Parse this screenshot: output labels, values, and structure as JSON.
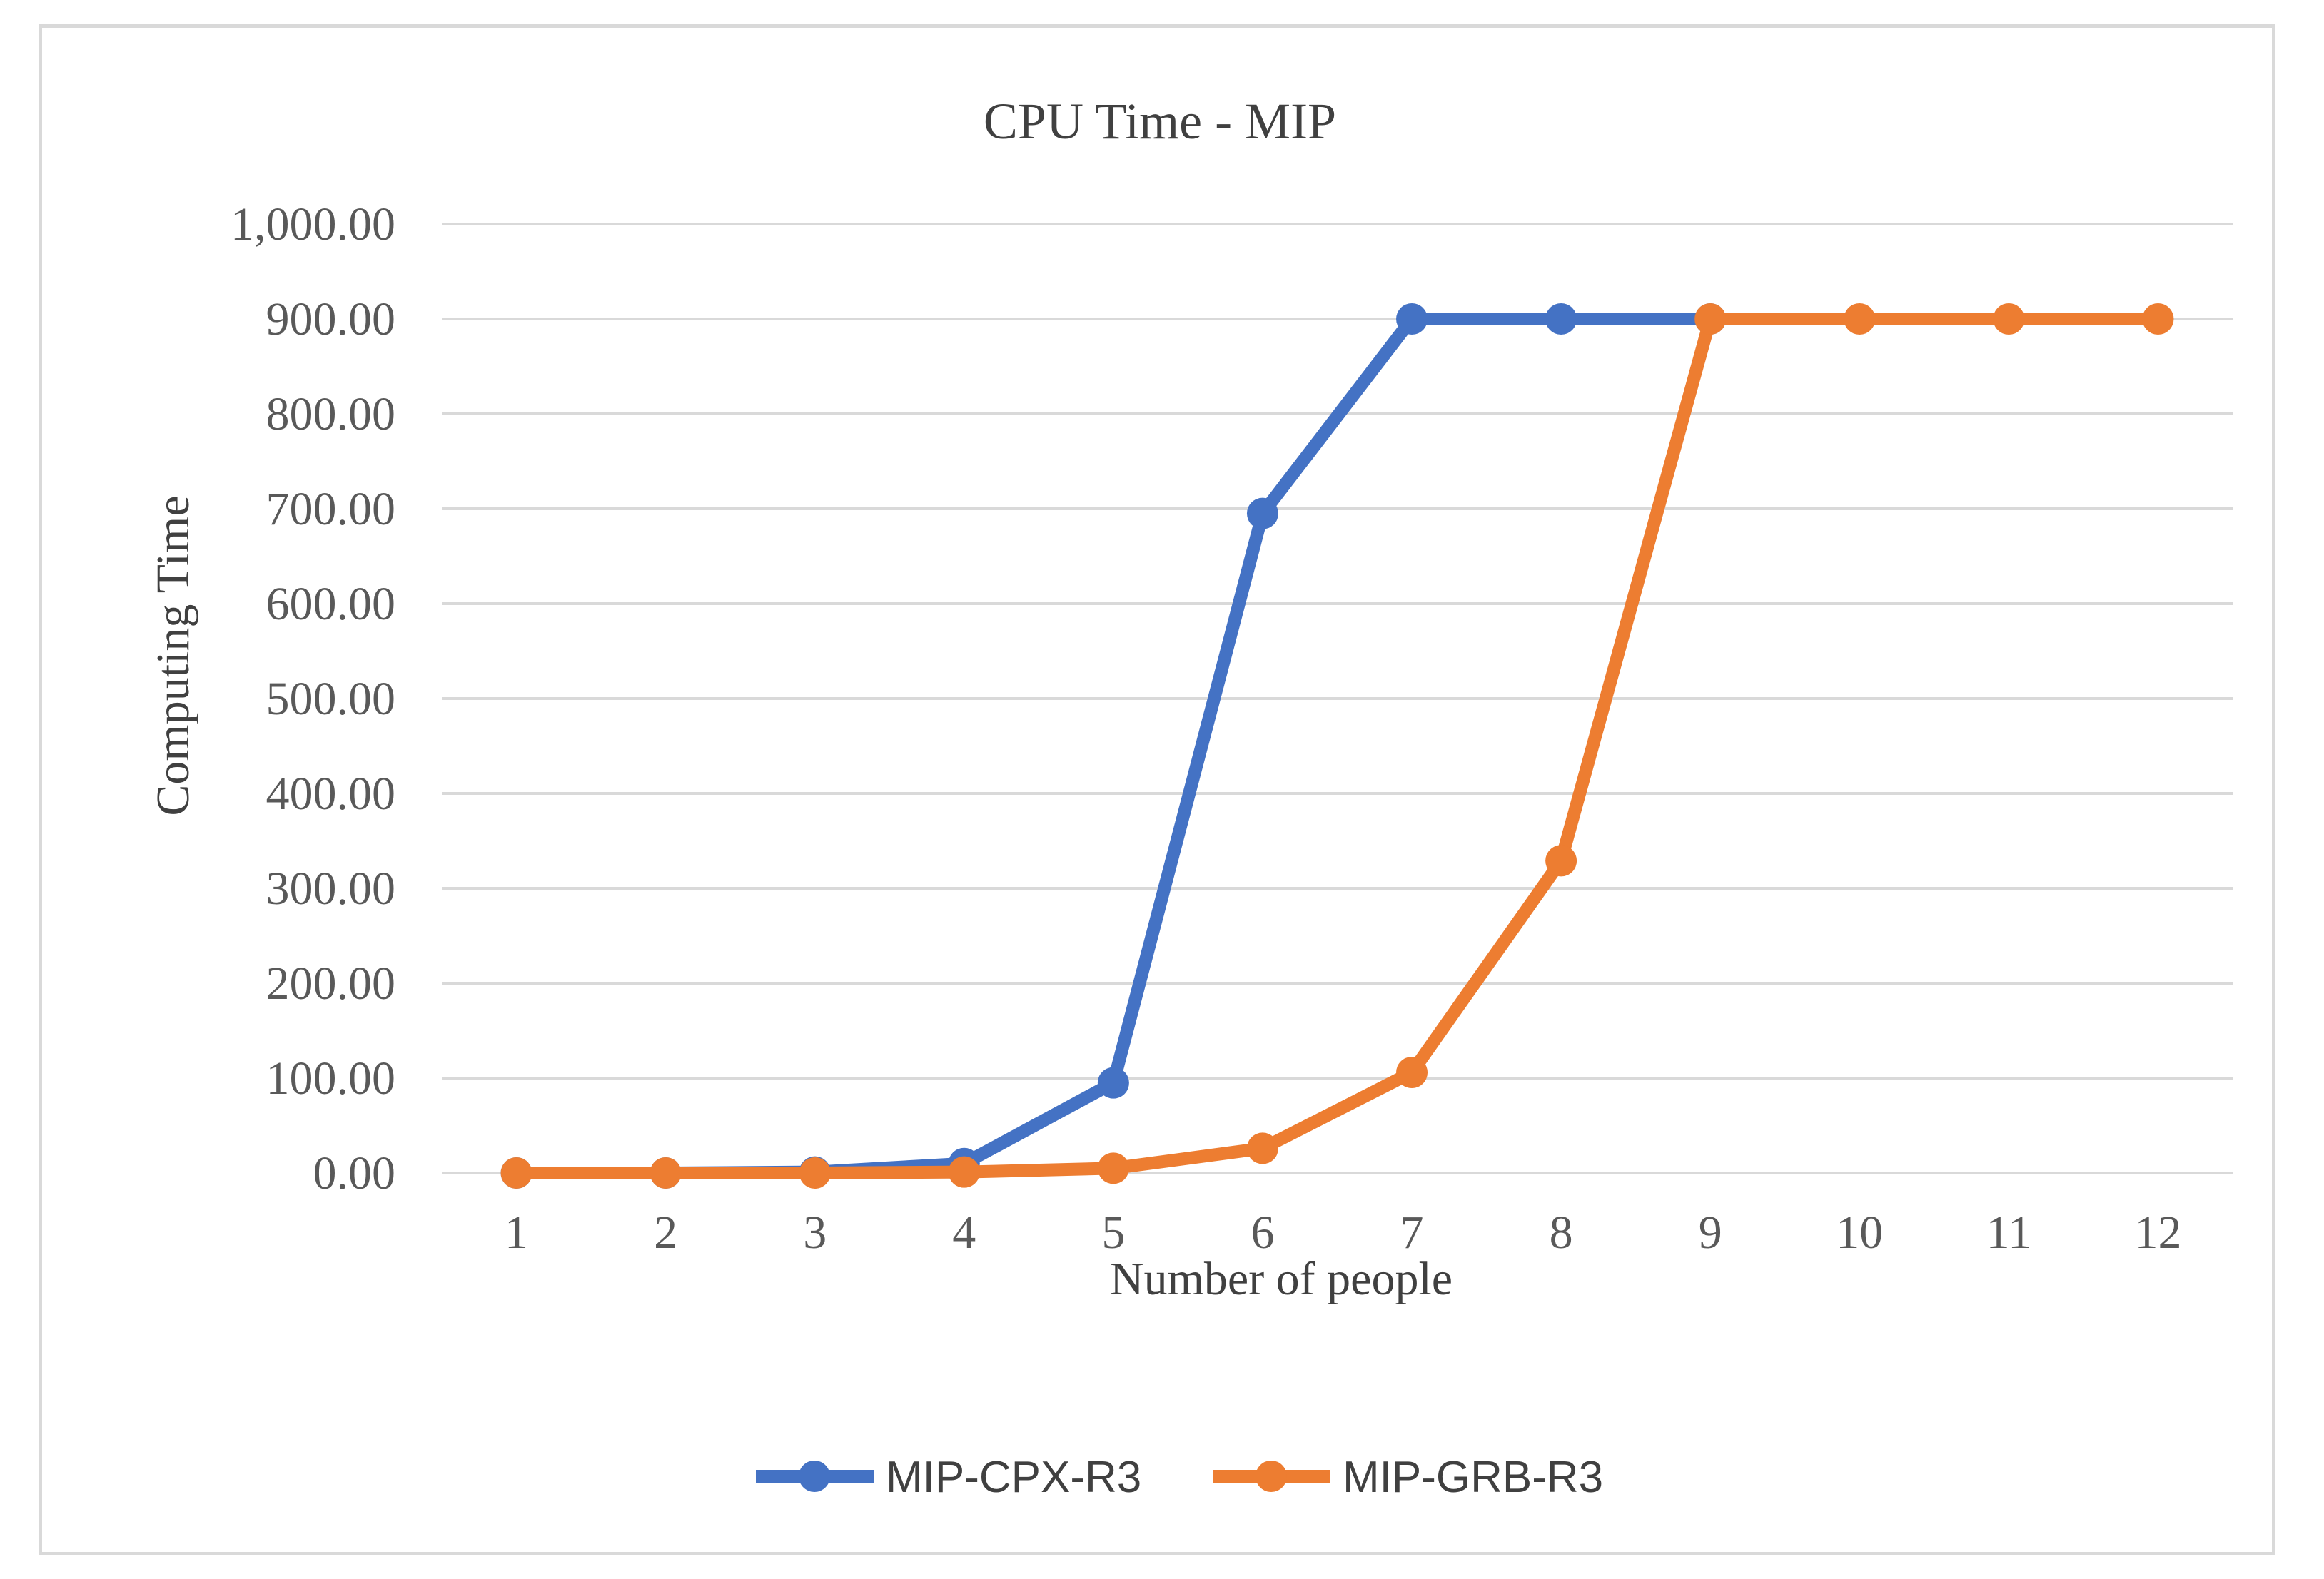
{
  "chart_data": {
    "type": "line",
    "title": "CPU Time - MIP",
    "xlabel": "Number of people",
    "ylabel": "Computing Time",
    "categories": [
      "1",
      "2",
      "3",
      "4",
      "5",
      "6",
      "7",
      "8",
      "9",
      "10",
      "11",
      "12"
    ],
    "y_ticks": [
      "0.00",
      "100.00",
      "200.00",
      "300.00",
      "400.00",
      "500.00",
      "600.00",
      "700.00",
      "800.00",
      "900.00",
      "1,000.00"
    ],
    "ylim": [
      0,
      1000
    ],
    "grid": true,
    "legend_position": "bottom",
    "series": [
      {
        "name": "MIP-CPX-R3",
        "color": "#4472c4",
        "values": [
          0,
          0,
          1,
          10,
          95,
          695,
          900,
          900,
          900,
          null,
          null,
          null
        ]
      },
      {
        "name": "MIP-GRB-R3",
        "color": "#ed7d31",
        "values": [
          0,
          0,
          0,
          1,
          5,
          26,
          106,
          329,
          900,
          900,
          900,
          900
        ]
      }
    ]
  }
}
